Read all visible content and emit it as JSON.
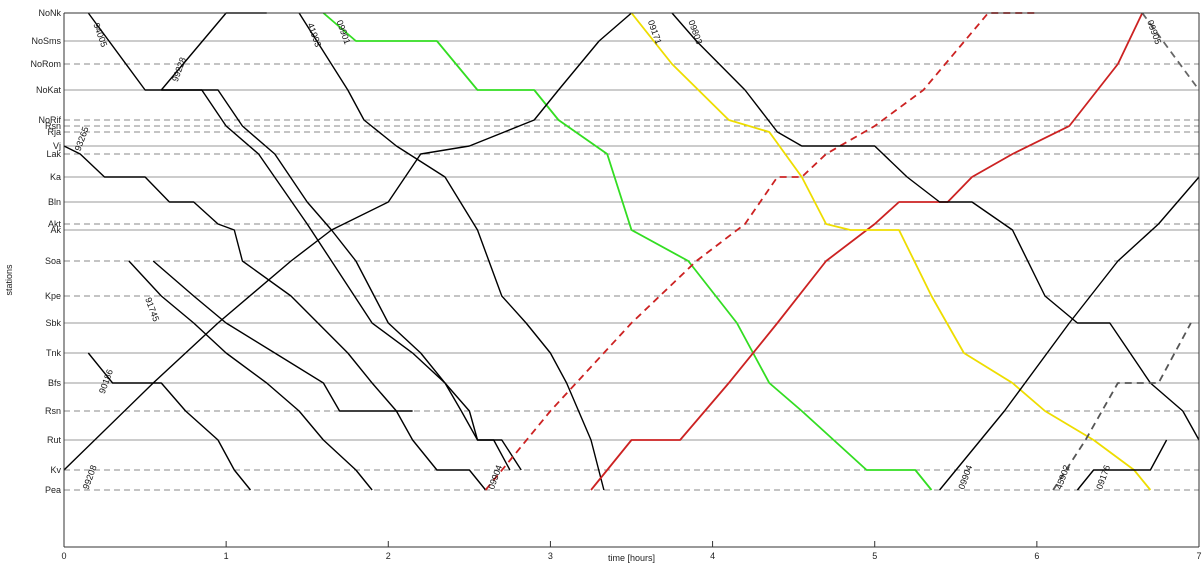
{
  "chart_data": {
    "type": "line",
    "title": "",
    "xlabel": "time [hours]",
    "ylabel": "stations",
    "xlim": [
      0,
      7
    ],
    "xticks": [
      "0",
      "1",
      "2",
      "3",
      "4",
      "5",
      "6",
      "7"
    ],
    "grid": "station lines (solid for major stations, dashed for minor)",
    "stations": [
      {
        "name": "NoNk",
        "style": "dashed"
      },
      {
        "name": "NoSms",
        "style": "solid"
      },
      {
        "name": "NoRom",
        "style": "dashed"
      },
      {
        "name": "NoKat",
        "style": "solid"
      },
      {
        "name": "NoRif",
        "style": "dashed"
      },
      {
        "name": "Rsn",
        "style": "dashed"
      },
      {
        "name": "Rja",
        "style": "dashed"
      },
      {
        "name": "Vj",
        "style": "solid"
      },
      {
        "name": "Lak",
        "style": "dashed"
      },
      {
        "name": "Ka",
        "style": "solid"
      },
      {
        "name": "Bln",
        "style": "solid"
      },
      {
        "name": "Akt",
        "style": "dashed"
      },
      {
        "name": "Ak",
        "style": "solid"
      },
      {
        "name": "Soa",
        "style": "dashed"
      },
      {
        "name": "Kpe",
        "style": "dashed"
      },
      {
        "name": "Sbk",
        "style": "solid"
      },
      {
        "name": "Tnk",
        "style": "solid"
      },
      {
        "name": "Bfs",
        "style": "solid"
      },
      {
        "name": "Rsn",
        "style": "dashed"
      },
      {
        "name": "Rut",
        "style": "solid"
      },
      {
        "name": "Kv",
        "style": "dashed"
      },
      {
        "name": "Pea",
        "style": "dashed"
      }
    ],
    "series": [
      {
        "label": "94005",
        "color": "#000000",
        "dashed": false,
        "points": [
          [
            0.15,
            0
          ],
          [
            0.5,
            3
          ],
          [
            0.85,
            3
          ],
          [
            1.0,
            5
          ],
          [
            1.2,
            8
          ],
          [
            1.5,
            11
          ],
          [
            1.65,
            13
          ],
          [
            1.9,
            15
          ],
          [
            2.15,
            16
          ],
          [
            2.35,
            17
          ],
          [
            2.5,
            18
          ],
          [
            2.55,
            19
          ],
          [
            2.7,
            19
          ],
          [
            2.82,
            20
          ]
        ]
      },
      {
        "label": "",
        "color": "#000000",
        "dashed": false,
        "points": [
          [
            0.6,
            3
          ],
          [
            1.0,
            0
          ],
          [
            1.25,
            0
          ]
        ]
      },
      {
        "label": "99228",
        "color": "#000000",
        "dashed": false,
        "points": [
          [
            0.6,
            3
          ],
          [
            0.95,
            3
          ],
          [
            1.1,
            5
          ],
          [
            1.3,
            8
          ],
          [
            1.5,
            10
          ],
          [
            1.65,
            12
          ],
          [
            1.8,
            13
          ],
          [
            2.0,
            15
          ],
          [
            2.2,
            16
          ],
          [
            2.35,
            17
          ],
          [
            2.45,
            18
          ],
          [
            2.55,
            19
          ],
          [
            2.65,
            19
          ],
          [
            2.75,
            20
          ]
        ]
      },
      {
        "label": "93265",
        "color": "#000000",
        "dashed": false,
        "points": [
          [
            0.0,
            7
          ],
          [
            0.1,
            8
          ],
          [
            0.25,
            9
          ],
          [
            0.5,
            9
          ],
          [
            0.65,
            10
          ],
          [
            0.8,
            10
          ],
          [
            0.95,
            11
          ],
          [
            1.05,
            12
          ],
          [
            1.1,
            13
          ],
          [
            1.4,
            14
          ],
          [
            1.75,
            16
          ],
          [
            1.9,
            17
          ],
          [
            2.05,
            18
          ],
          [
            2.15,
            19
          ],
          [
            2.3,
            20
          ],
          [
            2.5,
            20
          ],
          [
            2.6,
            21
          ]
        ]
      },
      {
        "label": "41993",
        "color": "#000000",
        "dashed": false,
        "points": [
          [
            1.45,
            0
          ],
          [
            1.75,
            3
          ],
          [
            1.85,
            4
          ],
          [
            2.05,
            7
          ],
          [
            2.35,
            9
          ],
          [
            2.55,
            12
          ],
          [
            2.7,
            14
          ],
          [
            2.85,
            15
          ],
          [
            3.0,
            16
          ],
          [
            3.1,
            17
          ],
          [
            3.25,
            19
          ],
          [
            3.33,
            21
          ]
        ]
      },
      {
        "label": "09901",
        "color": "#33dd22",
        "dashed": false,
        "points": [
          [
            1.6,
            0
          ],
          [
            1.8,
            1
          ],
          [
            2.3,
            1
          ],
          [
            2.55,
            3
          ],
          [
            2.9,
            3
          ],
          [
            3.05,
            4
          ],
          [
            3.35,
            8
          ],
          [
            3.5,
            12
          ],
          [
            3.85,
            13
          ],
          [
            4.15,
            15
          ],
          [
            4.35,
            17
          ],
          [
            4.55,
            18
          ],
          [
            4.95,
            20
          ],
          [
            5.25,
            20
          ],
          [
            5.35,
            21
          ]
        ]
      },
      {
        "label": "",
        "color": "#000000",
        "dashed": false,
        "points": [
          [
            0.55,
            13
          ],
          [
            0.8,
            14
          ],
          [
            1.0,
            15
          ],
          [
            1.3,
            16
          ],
          [
            1.6,
            17
          ],
          [
            1.7,
            18
          ],
          [
            2.15,
            18
          ]
        ]
      },
      {
        "label": "91745",
        "color": "#000000",
        "dashed": false,
        "points": [
          [
            0.4,
            13
          ],
          [
            0.6,
            14
          ],
          [
            0.8,
            15
          ],
          [
            1.0,
            16
          ],
          [
            1.25,
            17
          ],
          [
            1.45,
            18
          ],
          [
            1.6,
            19
          ],
          [
            1.8,
            20
          ],
          [
            1.9,
            21
          ]
        ]
      },
      {
        "label": "90186",
        "color": "#000000",
        "dashed": false,
        "points": [
          [
            0.15,
            16
          ],
          [
            0.3,
            17
          ],
          [
            0.6,
            17
          ],
          [
            0.75,
            18
          ],
          [
            0.95,
            19
          ],
          [
            1.05,
            20
          ],
          [
            1.15,
            21
          ]
        ]
      },
      {
        "label": "99208",
        "color": "#000000",
        "dashed": false,
        "points": [
          [
            0.0,
            20
          ],
          [
            0.55,
            17
          ],
          [
            0.95,
            15
          ],
          [
            1.4,
            13
          ],
          [
            1.65,
            12
          ],
          [
            2.0,
            10
          ],
          [
            2.2,
            8
          ],
          [
            2.5,
            7
          ],
          [
            2.9,
            4
          ],
          [
            3.05,
            3
          ],
          [
            3.3,
            1
          ],
          [
            3.5,
            0
          ]
        ]
      },
      {
        "label": "",
        "color": "#cc2222",
        "dashed": true,
        "points": [
          [
            2.6,
            21
          ],
          [
            3.0,
            18
          ],
          [
            3.5,
            15
          ],
          [
            3.9,
            13
          ],
          [
            4.2,
            11
          ],
          [
            4.4,
            9
          ],
          [
            4.55,
            9
          ],
          [
            4.7,
            8
          ],
          [
            5.0,
            5
          ],
          [
            5.3,
            3
          ],
          [
            5.7,
            0
          ],
          [
            6.0,
            0
          ]
        ]
      },
      {
        "label": "",
        "color": "#cc2222",
        "dashed": false,
        "points": [
          [
            3.25,
            21
          ],
          [
            3.5,
            19
          ],
          [
            3.8,
            19
          ],
          [
            4.1,
            17
          ],
          [
            4.4,
            15
          ],
          [
            4.7,
            13
          ],
          [
            5.0,
            11
          ],
          [
            5.15,
            10
          ],
          [
            5.45,
            10
          ],
          [
            5.6,
            9
          ],
          [
            5.85,
            8
          ],
          [
            6.2,
            5
          ],
          [
            6.5,
            2
          ],
          [
            6.65,
            0
          ]
        ]
      },
      {
        "label": "09171",
        "color": "#eedd00",
        "dashed": false,
        "points": [
          [
            3.5,
            0
          ],
          [
            3.75,
            2
          ],
          [
            4.1,
            4
          ],
          [
            4.35,
            6
          ],
          [
            4.55,
            9
          ],
          [
            4.7,
            11
          ],
          [
            4.85,
            12
          ],
          [
            5.15,
            12
          ],
          [
            5.35,
            14
          ],
          [
            5.55,
            16
          ],
          [
            5.85,
            17
          ],
          [
            6.05,
            18
          ],
          [
            6.35,
            19
          ],
          [
            6.6,
            20
          ],
          [
            6.7,
            21
          ]
        ]
      },
      {
        "label": "09803",
        "color": "#000000",
        "dashed": false,
        "points": [
          [
            3.75,
            0
          ],
          [
            3.9,
            1
          ],
          [
            4.2,
            3
          ],
          [
            4.4,
            6
          ],
          [
            4.55,
            7
          ],
          [
            5.0,
            7
          ],
          [
            5.2,
            9
          ],
          [
            5.4,
            10
          ],
          [
            5.6,
            10
          ],
          [
            5.85,
            12
          ],
          [
            6.05,
            14
          ],
          [
            6.25,
            15
          ],
          [
            6.45,
            15
          ],
          [
            6.7,
            17
          ],
          [
            6.9,
            18
          ],
          [
            7.0,
            19
          ]
        ]
      },
      {
        "label": "09904",
        "color": "#000000",
        "dashed": false,
        "points": [
          [
            5.4,
            21
          ],
          [
            5.8,
            18
          ],
          [
            6.2,
            15
          ],
          [
            6.5,
            13
          ],
          [
            6.75,
            11
          ],
          [
            7.0,
            9
          ]
        ]
      },
      {
        "label": "09905",
        "color": "#666666",
        "dashed": true,
        "points": [
          [
            6.65,
            0
          ],
          [
            7.0,
            3
          ]
        ]
      },
      {
        "label": "45902",
        "color": "#555555",
        "dashed": true,
        "points": [
          [
            6.1,
            21
          ],
          [
            6.3,
            19
          ],
          [
            6.5,
            17
          ],
          [
            6.75,
            17
          ],
          [
            6.95,
            15
          ]
        ]
      },
      {
        "label": "09176",
        "color": "#000000",
        "dashed": false,
        "points": [
          [
            6.25,
            21
          ],
          [
            6.35,
            20
          ],
          [
            6.55,
            20
          ],
          [
            6.7,
            20
          ],
          [
            6.8,
            19
          ]
        ]
      }
    ],
    "train_labels": [
      {
        "text": "94005",
        "x": 0.18,
        "y": 0.4,
        "rotate": 70
      },
      {
        "text": "99228",
        "x": 0.7,
        "y": 2.7,
        "rotate": -70
      },
      {
        "text": "93265",
        "x": 0.1,
        "y": 7.7,
        "rotate": -70
      },
      {
        "text": "41993",
        "x": 1.5,
        "y": 0.4,
        "rotate": 70
      },
      {
        "text": "09901",
        "x": 1.68,
        "y": 0.3,
        "rotate": 70
      },
      {
        "text": "91745",
        "x": 0.5,
        "y": 14.1,
        "rotate": 70
      },
      {
        "text": "90186",
        "x": 0.25,
        "y": 17.4,
        "rotate": -70
      },
      {
        "text": "99208",
        "x": 0.15,
        "y": 21.0,
        "rotate": -70
      },
      {
        "text": "09171",
        "x": 3.6,
        "y": 0.3,
        "rotate": 70
      },
      {
        "text": "09803",
        "x": 3.85,
        "y": 0.3,
        "rotate": 70
      },
      {
        "text": "09905",
        "x": 6.68,
        "y": 0.3,
        "rotate": 70
      },
      {
        "text": "09904",
        "x": 2.65,
        "y": 21.9,
        "rotate": -70
      },
      {
        "text": "09904",
        "x": 5.55,
        "y": 21.5,
        "rotate": -70
      },
      {
        "text": "45902",
        "x": 6.15,
        "y": 21.7,
        "rotate": -70
      },
      {
        "text": "09176",
        "x": 6.4,
        "y": 21.5,
        "rotate": -70
      }
    ]
  }
}
